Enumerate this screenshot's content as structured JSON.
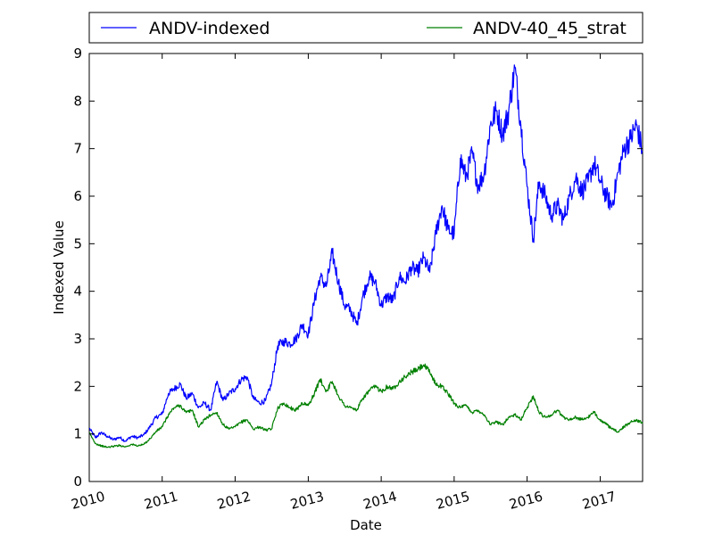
{
  "chart_data": {
    "type": "line",
    "title": "",
    "xlabel": "Date",
    "ylabel": "Indexed Value",
    "xlim": [
      "2010-01-01",
      "2017-08-01"
    ],
    "ylim": [
      0,
      9
    ],
    "x_ticks": [
      {
        "date": "2010-01-01",
        "label": "2010"
      },
      {
        "date": "2011-01-01",
        "label": "2011"
      },
      {
        "date": "2012-01-01",
        "label": "2012"
      },
      {
        "date": "2013-01-01",
        "label": "2013"
      },
      {
        "date": "2014-01-01",
        "label": "2014"
      },
      {
        "date": "2015-01-01",
        "label": "2015"
      },
      {
        "date": "2016-01-01",
        "label": "2016"
      },
      {
        "date": "2017-01-01",
        "label": "2017"
      }
    ],
    "y_ticks": [
      0,
      1,
      2,
      3,
      4,
      5,
      6,
      7,
      8,
      9
    ],
    "grid": false,
    "legend_position": "top",
    "series": [
      {
        "name": "ANDV-indexed",
        "color": "#0000ff",
        "points": [
          [
            "2010-01-01",
            1.12
          ],
          [
            "2010-02-01",
            0.92
          ],
          [
            "2010-03-01",
            1.03
          ],
          [
            "2010-04-01",
            0.95
          ],
          [
            "2010-05-01",
            0.88
          ],
          [
            "2010-06-01",
            0.93
          ],
          [
            "2010-07-01",
            0.85
          ],
          [
            "2010-08-01",
            0.95
          ],
          [
            "2010-09-01",
            0.92
          ],
          [
            "2010-10-01",
            0.98
          ],
          [
            "2010-11-01",
            1.15
          ],
          [
            "2010-12-01",
            1.35
          ],
          [
            "2011-01-01",
            1.42
          ],
          [
            "2011-02-01",
            1.85
          ],
          [
            "2011-03-01",
            1.95
          ],
          [
            "2011-04-01",
            2.05
          ],
          [
            "2011-05-01",
            1.75
          ],
          [
            "2011-06-01",
            1.85
          ],
          [
            "2011-07-01",
            1.55
          ],
          [
            "2011-08-01",
            1.65
          ],
          [
            "2011-09-01",
            1.5
          ],
          [
            "2011-10-01",
            2.1
          ],
          [
            "2011-11-01",
            1.7
          ],
          [
            "2011-12-01",
            1.85
          ],
          [
            "2012-01-01",
            1.95
          ],
          [
            "2012-02-01",
            2.15
          ],
          [
            "2012-03-01",
            2.2
          ],
          [
            "2012-04-01",
            1.75
          ],
          [
            "2012-05-01",
            1.65
          ],
          [
            "2012-06-01",
            1.7
          ],
          [
            "2012-07-01",
            2.05
          ],
          [
            "2012-08-01",
            2.85
          ],
          [
            "2012-09-01",
            2.95
          ],
          [
            "2012-10-01",
            2.9
          ],
          [
            "2012-11-01",
            3.0
          ],
          [
            "2012-12-01",
            3.3
          ],
          [
            "2013-01-01",
            3.1
          ],
          [
            "2013-02-01",
            3.8
          ],
          [
            "2013-03-01",
            4.3
          ],
          [
            "2013-04-01",
            4.1
          ],
          [
            "2013-05-01",
            4.8
          ],
          [
            "2013-06-01",
            4.2
          ],
          [
            "2013-07-01",
            3.7
          ],
          [
            "2013-08-01",
            3.6
          ],
          [
            "2013-09-01",
            3.3
          ],
          [
            "2013-10-01",
            3.9
          ],
          [
            "2013-11-01",
            4.3
          ],
          [
            "2013-12-01",
            4.2
          ],
          [
            "2014-01-01",
            3.7
          ],
          [
            "2014-02-01",
            3.9
          ],
          [
            "2014-03-01",
            3.8
          ],
          [
            "2014-04-01",
            4.3
          ],
          [
            "2014-05-01",
            4.2
          ],
          [
            "2014-06-01",
            4.5
          ],
          [
            "2014-07-01",
            4.4
          ],
          [
            "2014-08-01",
            4.7
          ],
          [
            "2014-09-01",
            4.4
          ],
          [
            "2014-10-01",
            5.2
          ],
          [
            "2014-11-01",
            5.8
          ],
          [
            "2014-12-01",
            5.3
          ],
          [
            "2015-01-01",
            5.2
          ],
          [
            "2015-02-01",
            6.8
          ],
          [
            "2015-03-01",
            6.4
          ],
          [
            "2015-04-01",
            6.9
          ],
          [
            "2015-05-01",
            6.2
          ],
          [
            "2015-06-01",
            6.5
          ],
          [
            "2015-07-01",
            7.5
          ],
          [
            "2015-08-01",
            7.8
          ],
          [
            "2015-09-01",
            7.3
          ],
          [
            "2015-10-01",
            7.8
          ],
          [
            "2015-11-01",
            8.7
          ],
          [
            "2015-12-01",
            7.5
          ],
          [
            "2016-01-01",
            6.2
          ],
          [
            "2016-02-01",
            5.1
          ],
          [
            "2016-03-01",
            6.3
          ],
          [
            "2016-04-01",
            6.0
          ],
          [
            "2016-05-01",
            5.6
          ],
          [
            "2016-06-01",
            5.8
          ],
          [
            "2016-07-01",
            5.5
          ],
          [
            "2016-08-01",
            6.0
          ],
          [
            "2016-09-01",
            6.4
          ],
          [
            "2016-10-01",
            6.1
          ],
          [
            "2016-11-01",
            6.3
          ],
          [
            "2016-12-01",
            6.7
          ],
          [
            "2017-01-01",
            6.3
          ],
          [
            "2017-02-01",
            6.0
          ],
          [
            "2017-03-01",
            5.8
          ],
          [
            "2017-04-01",
            6.5
          ],
          [
            "2017-05-01",
            7.0
          ],
          [
            "2017-06-01",
            7.2
          ],
          [
            "2017-07-01",
            7.5
          ],
          [
            "2017-08-01",
            6.95
          ]
        ]
      },
      {
        "name": "ANDV-40_45_strat",
        "color": "#008000",
        "points": [
          [
            "2010-01-01",
            1.02
          ],
          [
            "2010-02-01",
            0.8
          ],
          [
            "2010-03-01",
            0.75
          ],
          [
            "2010-04-01",
            0.72
          ],
          [
            "2010-05-01",
            0.74
          ],
          [
            "2010-06-01",
            0.76
          ],
          [
            "2010-07-01",
            0.73
          ],
          [
            "2010-08-01",
            0.78
          ],
          [
            "2010-09-01",
            0.75
          ],
          [
            "2010-10-01",
            0.78
          ],
          [
            "2010-11-01",
            0.9
          ],
          [
            "2010-12-01",
            1.05
          ],
          [
            "2011-01-01",
            1.15
          ],
          [
            "2011-02-01",
            1.4
          ],
          [
            "2011-03-01",
            1.55
          ],
          [
            "2011-04-01",
            1.6
          ],
          [
            "2011-05-01",
            1.45
          ],
          [
            "2011-06-01",
            1.5
          ],
          [
            "2011-07-01",
            1.15
          ],
          [
            "2011-08-01",
            1.3
          ],
          [
            "2011-09-01",
            1.4
          ],
          [
            "2011-10-01",
            1.45
          ],
          [
            "2011-11-01",
            1.2
          ],
          [
            "2011-12-01",
            1.1
          ],
          [
            "2012-01-01",
            1.15
          ],
          [
            "2012-02-01",
            1.25
          ],
          [
            "2012-03-01",
            1.3
          ],
          [
            "2012-04-01",
            1.1
          ],
          [
            "2012-05-01",
            1.15
          ],
          [
            "2012-06-01",
            1.08
          ],
          [
            "2012-07-01",
            1.1
          ],
          [
            "2012-08-01",
            1.55
          ],
          [
            "2012-09-01",
            1.65
          ],
          [
            "2012-10-01",
            1.55
          ],
          [
            "2012-11-01",
            1.5
          ],
          [
            "2012-12-01",
            1.65
          ],
          [
            "2013-01-01",
            1.6
          ],
          [
            "2013-02-01",
            1.85
          ],
          [
            "2013-03-01",
            2.15
          ],
          [
            "2013-04-01",
            1.9
          ],
          [
            "2013-05-01",
            2.1
          ],
          [
            "2013-06-01",
            1.8
          ],
          [
            "2013-07-01",
            1.6
          ],
          [
            "2013-08-01",
            1.55
          ],
          [
            "2013-09-01",
            1.5
          ],
          [
            "2013-10-01",
            1.75
          ],
          [
            "2013-11-01",
            1.9
          ],
          [
            "2013-12-01",
            2.0
          ],
          [
            "2014-01-01",
            1.9
          ],
          [
            "2014-02-01",
            2.0
          ],
          [
            "2014-03-01",
            1.95
          ],
          [
            "2014-04-01",
            2.1
          ],
          [
            "2014-05-01",
            2.2
          ],
          [
            "2014-06-01",
            2.3
          ],
          [
            "2014-07-01",
            2.35
          ],
          [
            "2014-08-01",
            2.45
          ],
          [
            "2014-09-01",
            2.3
          ],
          [
            "2014-10-01",
            2.05
          ],
          [
            "2014-11-01",
            2.0
          ],
          [
            "2014-12-01",
            1.85
          ],
          [
            "2015-01-01",
            1.65
          ],
          [
            "2015-02-01",
            1.55
          ],
          [
            "2015-03-01",
            1.6
          ],
          [
            "2015-04-01",
            1.45
          ],
          [
            "2015-05-01",
            1.5
          ],
          [
            "2015-06-01",
            1.4
          ],
          [
            "2015-07-01",
            1.2
          ],
          [
            "2015-08-01",
            1.25
          ],
          [
            "2015-09-01",
            1.2
          ],
          [
            "2015-10-01",
            1.35
          ],
          [
            "2015-11-01",
            1.4
          ],
          [
            "2015-12-01",
            1.3
          ],
          [
            "2016-01-01",
            1.55
          ],
          [
            "2016-02-01",
            1.8
          ],
          [
            "2016-03-01",
            1.45
          ],
          [
            "2016-04-01",
            1.35
          ],
          [
            "2016-05-01",
            1.4
          ],
          [
            "2016-06-01",
            1.5
          ],
          [
            "2016-07-01",
            1.35
          ],
          [
            "2016-08-01",
            1.3
          ],
          [
            "2016-09-01",
            1.35
          ],
          [
            "2016-10-01",
            1.3
          ],
          [
            "2016-11-01",
            1.35
          ],
          [
            "2016-12-01",
            1.45
          ],
          [
            "2017-01-01",
            1.3
          ],
          [
            "2017-02-01",
            1.2
          ],
          [
            "2017-03-01",
            1.1
          ],
          [
            "2017-04-01",
            1.05
          ],
          [
            "2017-05-01",
            1.15
          ],
          [
            "2017-06-01",
            1.25
          ],
          [
            "2017-07-01",
            1.3
          ],
          [
            "2017-08-01",
            1.22
          ]
        ]
      }
    ]
  }
}
